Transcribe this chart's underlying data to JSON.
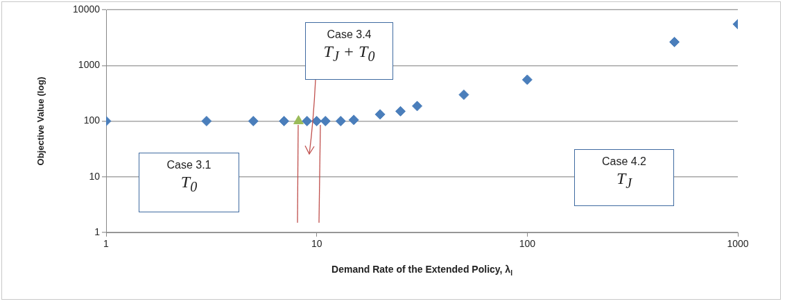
{
  "chart_data": {
    "type": "scatter",
    "xlabel": "Demand Rate of the Extended Policy, λ$_{I}$",
    "ylabel": "Objective Value (log)",
    "log": "xy",
    "xlim": [
      1,
      1000
    ],
    "xticks": [
      1,
      10,
      100,
      1000
    ],
    "ylim": [
      1,
      10000
    ],
    "yticks": [
      1,
      10,
      100,
      1000,
      10000
    ],
    "grid": "y",
    "legend": false,
    "series": [
      {
        "color": "#4a7ebb",
        "marker": "diamond",
        "x": [
          1,
          3,
          5,
          7,
          9,
          10,
          11,
          13,
          15,
          20,
          25,
          30,
          50,
          100,
          500,
          1000
        ],
        "values": [
          100,
          100,
          100,
          100,
          100,
          100,
          100,
          100,
          105,
          132,
          150,
          186,
          297,
          553,
          2630,
          5500
        ]
      },
      {
        "color": "#9bbb59",
        "marker": "triangle",
        "x": [
          8.2
        ],
        "values": [
          100
        ]
      }
    ],
    "annotations": [
      "Case 3.1\nT$_{0}$",
      "Case 3.4\nT$_{J}$ + T$_{0}$",
      "Case 4.2\nT$_{J}$"
    ]
  }
}
